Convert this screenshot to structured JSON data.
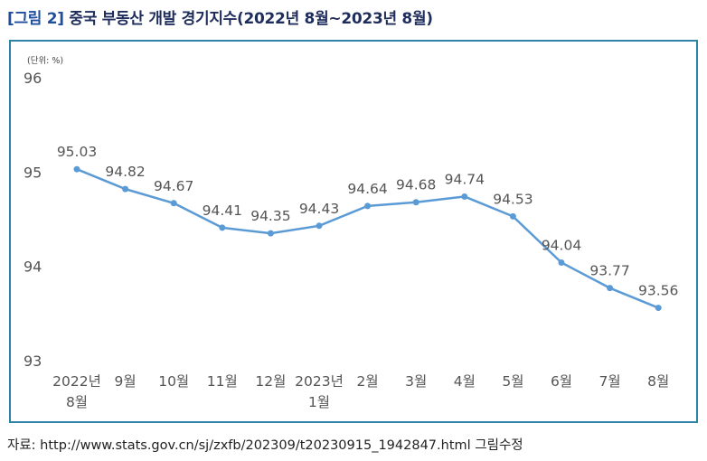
{
  "figure": {
    "tag": "[그림 2]",
    "title": "중국 부동산 개발 경기지수(2022년 8월~2023년 8월)"
  },
  "unit_label": "(단위: %)",
  "source": "자료: http://www.stats.gov.cn/sj/zxfb/202309/t20230915_1942847.html 그림수정",
  "chart_data": {
    "type": "line",
    "title": "",
    "xlabel": "",
    "ylabel": "",
    "categories": [
      [
        "2022년",
        "8월"
      ],
      [
        "9월"
      ],
      [
        "10월"
      ],
      [
        "11월"
      ],
      [
        "12월"
      ],
      [
        "2023년",
        "1월"
      ],
      [
        "2월"
      ],
      [
        "3월"
      ],
      [
        "4월"
      ],
      [
        "5월"
      ],
      [
        "6월"
      ],
      [
        "7월"
      ],
      [
        "8월"
      ]
    ],
    "series": [
      {
        "values": [
          95.03,
          94.82,
          94.67,
          94.41,
          94.35,
          94.43,
          94.64,
          94.68,
          94.74,
          94.53,
          94.04,
          93.77,
          93.56
        ]
      }
    ],
    "data_labels": [
      "95.03",
      "94.82",
      "94.67",
      "94.41",
      "94.35",
      "94.43",
      "94.64",
      "94.68",
      "94.74",
      "94.53",
      "94.04",
      "93.77",
      "93.56"
    ],
    "ylim": [
      93,
      96
    ],
    "yticks": [
      "93",
      "94",
      "95",
      "96"
    ],
    "grid": false,
    "legend": "none",
    "line_color": "#5b9bd5",
    "marker": "circle"
  }
}
